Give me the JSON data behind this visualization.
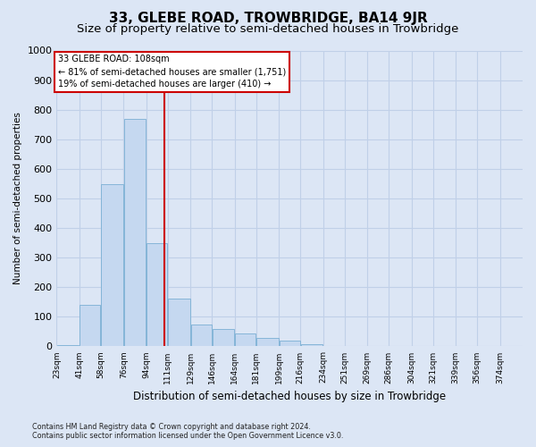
{
  "title": "33, GLEBE ROAD, TROWBRIDGE, BA14 9JR",
  "subtitle": "Size of property relative to semi-detached houses in Trowbridge",
  "xlabel": "Distribution of semi-detached houses by size in Trowbridge",
  "ylabel": "Number of semi-detached properties",
  "footer_line1": "Contains HM Land Registry data © Crown copyright and database right 2024.",
  "footer_line2": "Contains public sector information licensed under the Open Government Licence v3.0.",
  "bin_labels": [
    "23sqm",
    "41sqm",
    "58sqm",
    "76sqm",
    "94sqm",
    "111sqm",
    "129sqm",
    "146sqm",
    "164sqm",
    "181sqm",
    "199sqm",
    "216sqm",
    "234sqm",
    "251sqm",
    "269sqm",
    "286sqm",
    "304sqm",
    "321sqm",
    "339sqm",
    "356sqm",
    "374sqm"
  ],
  "bar_values": [
    5,
    140,
    548,
    770,
    350,
    160,
    75,
    60,
    45,
    30,
    18,
    8,
    2,
    0,
    0,
    0,
    0,
    0,
    0,
    0,
    0
  ],
  "bin_edges": [
    23,
    41,
    58,
    76,
    94,
    111,
    129,
    146,
    164,
    181,
    199,
    216,
    234,
    251,
    269,
    286,
    304,
    321,
    339,
    356,
    374,
    392
  ],
  "bar_color": "#c5d8f0",
  "bar_edgecolor": "#7aafd4",
  "property_size": 108,
  "property_label": "33 GLEBE ROAD: 108sqm",
  "annotation_line1": "← 81% of semi-detached houses are smaller (1,751)",
  "annotation_line2": "19% of semi-detached houses are larger (410) →",
  "vline_color": "#cc0000",
  "ylim": [
    0,
    1000
  ],
  "yticks": [
    0,
    100,
    200,
    300,
    400,
    500,
    600,
    700,
    800,
    900,
    1000
  ],
  "background_color": "#dce6f5",
  "grid_color": "#c0d0e8",
  "title_fontsize": 11,
  "subtitle_fontsize": 9.5
}
